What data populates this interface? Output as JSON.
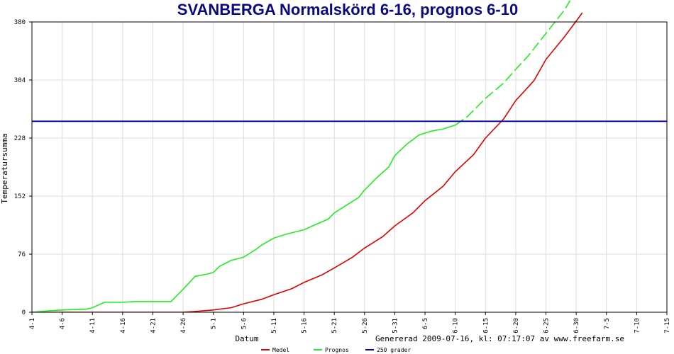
{
  "chart_data": {
    "type": "line",
    "title": "SVANBERGA Normalskörd 6-16, prognos 6-10",
    "xlabel": "Datum",
    "ylabel": "Temperatursumma",
    "footer": "Genererad 2009-07-16, kl: 07:17:07 av www.freefarm.se",
    "ylim": [
      0,
      380
    ],
    "yticks": [
      "0",
      "76",
      "152",
      "228",
      "304",
      "380"
    ],
    "xlim": [
      "4-1",
      "7-15"
    ],
    "xticks": [
      "4-1",
      "4-6",
      "4-11",
      "4-16",
      "4-21",
      "4-26",
      "5-1",
      "5-6",
      "5-11",
      "5-16",
      "5-21",
      "5-26",
      "5-31",
      "6-5",
      "6-10",
      "6-15",
      "6-20",
      "6-25",
      "6-30",
      "7-5",
      "7-10",
      "7-15"
    ],
    "grid": true,
    "legend_position": "bottom",
    "series": [
      {
        "name": "Medel",
        "color": "#e00000",
        "x": [
          "4-1",
          "4-6",
          "4-11",
          "4-16",
          "4-21",
          "4-26",
          "4-28",
          "5-1",
          "5-4",
          "5-6",
          "5-9",
          "5-11",
          "5-14",
          "5-16",
          "5-19",
          "5-21",
          "5-24",
          "5-26",
          "5-29",
          "5-31",
          "6-3",
          "6-5",
          "6-8",
          "6-10",
          "6-13",
          "6-15",
          "6-18",
          "6-20",
          "6-23",
          "6-25",
          "6-28",
          "6-30",
          "7-1"
        ],
        "values": [
          0,
          0,
          0,
          0,
          0,
          0,
          1,
          3,
          6,
          11,
          17,
          23,
          31,
          39,
          49,
          58,
          72,
          84,
          99,
          113,
          130,
          146,
          165,
          184,
          206,
          228,
          253,
          277,
          303,
          331,
          360,
          381,
          392
        ]
      },
      {
        "name": "Prognos",
        "color": "#22ee22",
        "dashed_from": "6-10",
        "x": [
          "4-1",
          "4-4",
          "4-6",
          "4-10",
          "4-11",
          "4-13",
          "4-16",
          "4-18",
          "4-21",
          "4-24",
          "4-26",
          "4-28",
          "4-30",
          "5-1",
          "5-2",
          "5-4",
          "5-6",
          "5-8",
          "5-9",
          "5-11",
          "5-13",
          "5-16",
          "5-18",
          "5-20",
          "5-21",
          "5-23",
          "5-25",
          "5-26",
          "5-28",
          "5-30",
          "5-31",
          "6-2",
          "6-4",
          "6-6",
          "6-8",
          "6-10",
          "6-12",
          "6-14",
          "6-15",
          "6-18",
          "6-20",
          "6-22",
          "6-24",
          "6-26",
          "6-28",
          "6-29"
        ],
        "values": [
          0,
          2,
          3,
          4,
          6,
          13,
          13,
          14,
          14,
          14,
          30,
          47,
          50,
          52,
          60,
          68,
          72,
          82,
          88,
          97,
          102,
          108,
          115,
          122,
          130,
          140,
          150,
          160,
          176,
          190,
          205,
          220,
          232,
          237,
          240,
          245,
          256,
          272,
          280,
          300,
          318,
          335,
          355,
          375,
          395,
          408
        ]
      },
      {
        "name": "250 grader",
        "color": "#0000a0",
        "x": [
          "4-1",
          "7-15"
        ],
        "values": [
          250,
          250
        ]
      }
    ]
  }
}
